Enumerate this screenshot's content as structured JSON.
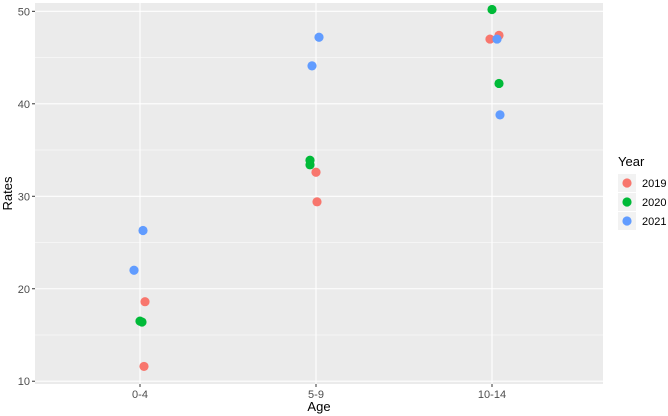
{
  "chart_data": {
    "type": "scatter",
    "xlabel": "Age",
    "ylabel": "Rates",
    "categories": [
      "0-4",
      "5-9",
      "10-14"
    ],
    "ylim": [
      9.7,
      50.9
    ],
    "yticks": [
      10,
      20,
      30,
      40,
      50
    ],
    "y_tick_labels": [
      "10",
      "20",
      "30",
      "40",
      "50"
    ],
    "grid": true,
    "legend": {
      "title": "Year",
      "position": "right"
    },
    "series": [
      {
        "name": "2019",
        "color": "#F8766D",
        "points": [
          {
            "x": "0-4",
            "y": 18.6
          },
          {
            "x": "0-4",
            "y": 11.6
          },
          {
            "x": "5-9",
            "y": 32.6
          },
          {
            "x": "5-9",
            "y": 29.4
          },
          {
            "x": "10-14",
            "y": 47.0
          },
          {
            "x": "10-14",
            "y": 47.4
          }
        ]
      },
      {
        "name": "2020",
        "color": "#00BA38",
        "points": [
          {
            "x": "0-4",
            "y": 16.4
          },
          {
            "x": "0-4",
            "y": 16.5
          },
          {
            "x": "5-9",
            "y": 33.9
          },
          {
            "x": "5-9",
            "y": 33.4
          },
          {
            "x": "10-14",
            "y": 50.2
          },
          {
            "x": "10-14",
            "y": 42.2
          }
        ]
      },
      {
        "name": "2021",
        "color": "#619CFF",
        "points": [
          {
            "x": "0-4",
            "y": 26.3
          },
          {
            "x": "0-4",
            "y": 22.0
          },
          {
            "x": "5-9",
            "y": 47.2
          },
          {
            "x": "5-9",
            "y": 44.1
          },
          {
            "x": "10-14",
            "y": 47.0
          },
          {
            "x": "10-14",
            "y": 38.8
          }
        ]
      }
    ]
  },
  "colors": {
    "panel": "#EBEBEB",
    "grid": "#FFFFFF",
    "legend_key_bg": "#F2F2F2"
  }
}
